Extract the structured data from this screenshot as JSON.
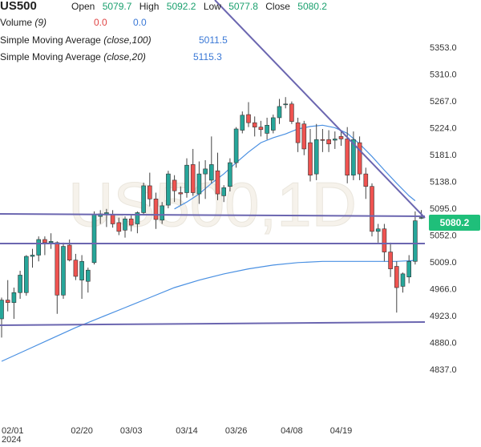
{
  "header": {
    "symbol": "US500",
    "open_label": "Open",
    "open_value": "5079.7",
    "high_label": "High",
    "high_value": "5092.2",
    "low_label": "Low",
    "low_value": "5077.8",
    "close_label": "Close",
    "close_value": "5080.2",
    "volume_label": "Volume",
    "volume_param": "(9)",
    "volume_v1": "0.0",
    "volume_v2": "0.0",
    "sma100_label": "Simple Moving Average",
    "sma100_param": "(close,100)",
    "sma100_value": "5011.5",
    "sma20_label": "Simple Moving Average",
    "sma20_param": "(close,20)",
    "sma20_value": "5115.3"
  },
  "watermark": "US500,1D",
  "price_tag": "5080.2",
  "colors": {
    "up": "#26a69a",
    "down": "#ef5350",
    "sma": "#4a90e2",
    "trendline": "#6b66b0",
    "tag": "#1fbf7a"
  },
  "chart_data": {
    "type": "candlestick",
    "ylim": [
      4800,
      5390
    ],
    "y_ticks": [
      "5353.0",
      "5310.0",
      "5267.0",
      "5224.0",
      "5181.0",
      "5138.0",
      "5095.0",
      "5052.0",
      "5009.0",
      "4966.0",
      "4923.0",
      "4880.0",
      "4837.0"
    ],
    "x_ticks": [
      {
        "label": "02/01",
        "index": 0
      },
      {
        "label": "02/20",
        "index": 13
      },
      {
        "label": "03/03",
        "index": 21
      },
      {
        "label": "03/14",
        "index": 30
      },
      {
        "label": "03/26",
        "index": 38
      },
      {
        "label": "04/08",
        "index": 47
      },
      {
        "label": "04/19",
        "index": 55
      }
    ],
    "x_subtitle": "2024",
    "candles": [
      {
        "o": 4918,
        "h": 4952,
        "l": 4888,
        "c": 4948
      },
      {
        "o": 4948,
        "h": 4980,
        "l": 4930,
        "c": 4944
      },
      {
        "o": 4944,
        "h": 4968,
        "l": 4918,
        "c": 4960
      },
      {
        "o": 4960,
        "h": 4995,
        "l": 4950,
        "c": 4988
      },
      {
        "o": 4960,
        "h": 5020,
        "l": 4955,
        "c": 5018
      },
      {
        "o": 5018,
        "h": 5030,
        "l": 5000,
        "c": 5020
      },
      {
        "o": 5020,
        "h": 5050,
        "l": 5010,
        "c": 5045
      },
      {
        "o": 5045,
        "h": 5050,
        "l": 5020,
        "c": 5040
      },
      {
        "o": 5040,
        "h": 5055,
        "l": 5030,
        "c": 5042
      },
      {
        "o": 5040,
        "h": 5042,
        "l": 4926,
        "c": 4956
      },
      {
        "o": 4956,
        "h": 5040,
        "l": 4950,
        "c": 5034
      },
      {
        "o": 5036,
        "h": 5045,
        "l": 5010,
        "c": 5012
      },
      {
        "o": 5012,
        "h": 5022,
        "l": 4980,
        "c": 4986
      },
      {
        "o": 4980,
        "h": 5020,
        "l": 4950,
        "c": 5010
      },
      {
        "o": 4978,
        "h": 5000,
        "l": 4960,
        "c": 4996
      },
      {
        "o": 5008,
        "h": 5090,
        "l": 5005,
        "c": 5085
      },
      {
        "o": 5082,
        "h": 5092,
        "l": 5070,
        "c": 5086
      },
      {
        "o": 5086,
        "h": 5094,
        "l": 5065,
        "c": 5088
      },
      {
        "o": 5085,
        "h": 5092,
        "l": 5064,
        "c": 5070
      },
      {
        "o": 5072,
        "h": 5080,
        "l": 5052,
        "c": 5058
      },
      {
        "o": 5060,
        "h": 5082,
        "l": 5048,
        "c": 5078
      },
      {
        "o": 5078,
        "h": 5085,
        "l": 5058,
        "c": 5068
      },
      {
        "o": 5070,
        "h": 5090,
        "l": 5055,
        "c": 5088
      },
      {
        "o": 5088,
        "h": 5136,
        "l": 5085,
        "c": 5131
      },
      {
        "o": 5131,
        "h": 5152,
        "l": 5098,
        "c": 5110
      },
      {
        "o": 5110,
        "h": 5120,
        "l": 5062,
        "c": 5077
      },
      {
        "o": 5076,
        "h": 5105,
        "l": 5070,
        "c": 5099
      },
      {
        "o": 5100,
        "h": 5155,
        "l": 5095,
        "c": 5150
      },
      {
        "o": 5140,
        "h": 5148,
        "l": 5105,
        "c": 5123
      },
      {
        "o": 5120,
        "h": 5130,
        "l": 5100,
        "c": 5118
      },
      {
        "o": 5120,
        "h": 5175,
        "l": 5112,
        "c": 5164
      },
      {
        "o": 5165,
        "h": 5190,
        "l": 5115,
        "c": 5120
      },
      {
        "o": 5118,
        "h": 5170,
        "l": 5102,
        "c": 5150
      },
      {
        "o": 5150,
        "h": 5172,
        "l": 5110,
        "c": 5158
      },
      {
        "o": 5140,
        "h": 5210,
        "l": 5135,
        "c": 5165
      },
      {
        "o": 5155,
        "h": 5184,
        "l": 5108,
        "c": 5118
      },
      {
        "o": 5115,
        "h": 5132,
        "l": 5105,
        "c": 5128
      },
      {
        "o": 5130,
        "h": 5175,
        "l": 5122,
        "c": 5168
      },
      {
        "o": 5168,
        "h": 5225,
        "l": 5160,
        "c": 5222
      },
      {
        "o": 5220,
        "h": 5250,
        "l": 5215,
        "c": 5244
      },
      {
        "o": 5245,
        "h": 5265,
        "l": 5225,
        "c": 5232
      },
      {
        "o": 5232,
        "h": 5242,
        "l": 5210,
        "c": 5225
      },
      {
        "o": 5225,
        "h": 5235,
        "l": 5210,
        "c": 5221
      },
      {
        "o": 5215,
        "h": 5240,
        "l": 5205,
        "c": 5228
      },
      {
        "o": 5220,
        "h": 5245,
        "l": 5215,
        "c": 5240
      },
      {
        "o": 5240,
        "h": 5270,
        "l": 5230,
        "c": 5258
      },
      {
        "o": 5262,
        "h": 5273,
        "l": 5255,
        "c": 5262
      },
      {
        "o": 5262,
        "h": 5266,
        "l": 5230,
        "c": 5234
      },
      {
        "o": 5232,
        "h": 5240,
        "l": 5185,
        "c": 5200
      },
      {
        "o": 5230,
        "h": 5235,
        "l": 5180,
        "c": 5190
      },
      {
        "o": 5200,
        "h": 5222,
        "l": 5138,
        "c": 5148
      },
      {
        "o": 5150,
        "h": 5230,
        "l": 5140,
        "c": 5205
      },
      {
        "o": 5205,
        "h": 5222,
        "l": 5185,
        "c": 5204
      },
      {
        "o": 5205,
        "h": 5220,
        "l": 5185,
        "c": 5198
      },
      {
        "o": 5204,
        "h": 5218,
        "l": 5190,
        "c": 5206
      },
      {
        "o": 5210,
        "h": 5220,
        "l": 5195,
        "c": 5206
      },
      {
        "o": 5206,
        "h": 5225,
        "l": 5135,
        "c": 5148
      },
      {
        "o": 5148,
        "h": 5218,
        "l": 5140,
        "c": 5205
      },
      {
        "o": 5200,
        "h": 5210,
        "l": 5140,
        "c": 5150
      },
      {
        "o": 5150,
        "h": 5160,
        "l": 5110,
        "c": 5130
      },
      {
        "o": 5130,
        "h": 5135,
        "l": 5050,
        "c": 5058
      },
      {
        "o": 5058,
        "h": 5070,
        "l": 5040,
        "c": 5062
      },
      {
        "o": 5062,
        "h": 5070,
        "l": 5010,
        "c": 5025
      },
      {
        "o": 5025,
        "h": 5040,
        "l": 4985,
        "c": 4998
      },
      {
        "o": 5002,
        "h": 5010,
        "l": 4928,
        "c": 4968
      },
      {
        "o": 4970,
        "h": 4992,
        "l": 4960,
        "c": 4990
      },
      {
        "o": 4985,
        "h": 5020,
        "l": 4975,
        "c": 5010
      },
      {
        "o": 5010,
        "h": 5090,
        "l": 5005,
        "c": 5075
      },
      {
        "o": 5079.7,
        "h": 5092.2,
        "l": 5077.8,
        "c": 5080.2
      }
    ],
    "sma20": [
      [
        28,
        5094
      ],
      [
        30,
        5105
      ],
      [
        32,
        5118
      ],
      [
        34,
        5135
      ],
      [
        36,
        5150
      ],
      [
        38,
        5168
      ],
      [
        40,
        5185
      ],
      [
        42,
        5200
      ],
      [
        44,
        5208
      ],
      [
        46,
        5214
      ],
      [
        48,
        5222
      ],
      [
        50,
        5226
      ],
      [
        52,
        5228
      ],
      [
        54,
        5224
      ],
      [
        56,
        5215
      ],
      [
        58,
        5198
      ],
      [
        60,
        5178
      ],
      [
        62,
        5156
      ],
      [
        64,
        5135
      ],
      [
        66,
        5115
      ],
      [
        67,
        5107
      ]
    ],
    "sma100": [
      [
        0,
        4850
      ],
      [
        4,
        4868
      ],
      [
        8,
        4886
      ],
      [
        12,
        4904
      ],
      [
        16,
        4920
      ],
      [
        20,
        4936
      ],
      [
        24,
        4952
      ],
      [
        28,
        4968
      ],
      [
        32,
        4980
      ],
      [
        36,
        4990
      ],
      [
        40,
        4998
      ],
      [
        44,
        5004
      ],
      [
        48,
        5008
      ],
      [
        52,
        5010
      ],
      [
        56,
        5010
      ],
      [
        60,
        5010
      ],
      [
        64,
        5010
      ],
      [
        67,
        5011.5
      ]
    ]
  }
}
